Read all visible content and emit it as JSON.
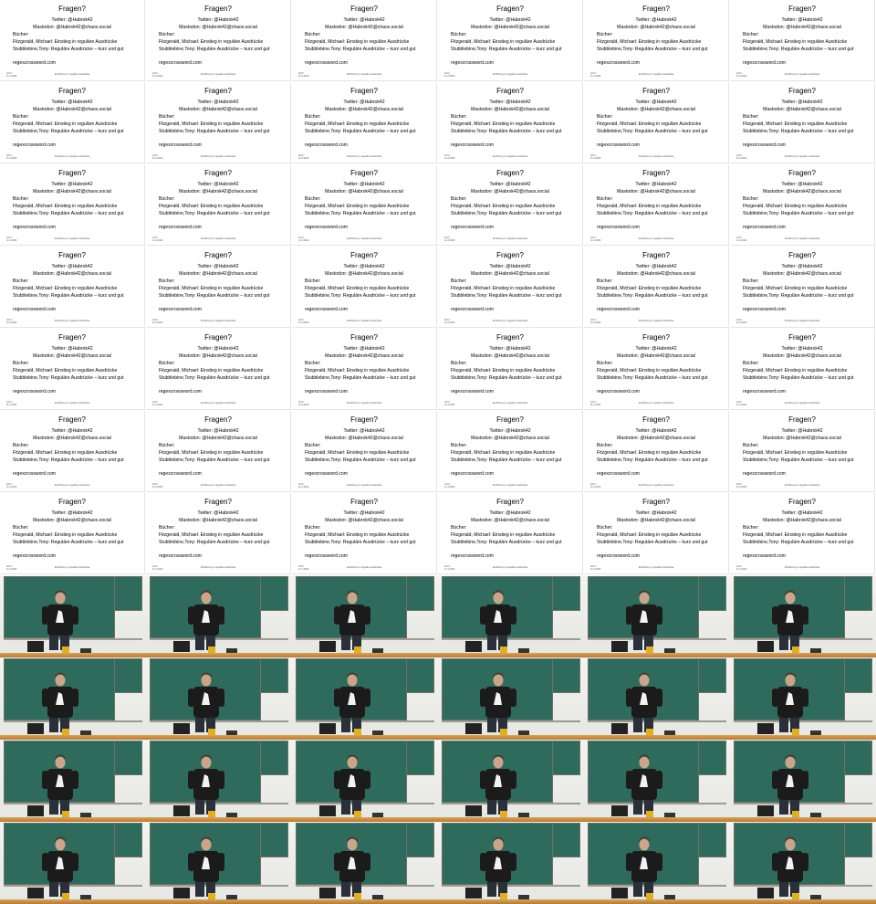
{
  "slide": {
    "title": "Fragen?",
    "twitter": "Twitter: @Habrok42",
    "mastodon": "Mastodon: @Habrok42@chaos.social",
    "books_heading": "Bücher:",
    "book1": "Fitzgerald, Michael: Einstieg in reguläre Ausdrücke",
    "book2": "Stubblebine,Tony: Reguläre Ausdrücke – kurz und gut",
    "website": "regexcrossword.com",
    "footer_left": "GS II, 11.4.2023",
    "footer_center": "Einführung in reguläre Ausdrücke"
  },
  "colors": {
    "chalkboard": "#2f6b5c",
    "shirt": "#1b1b1b",
    "desk": "#c78c43"
  }
}
